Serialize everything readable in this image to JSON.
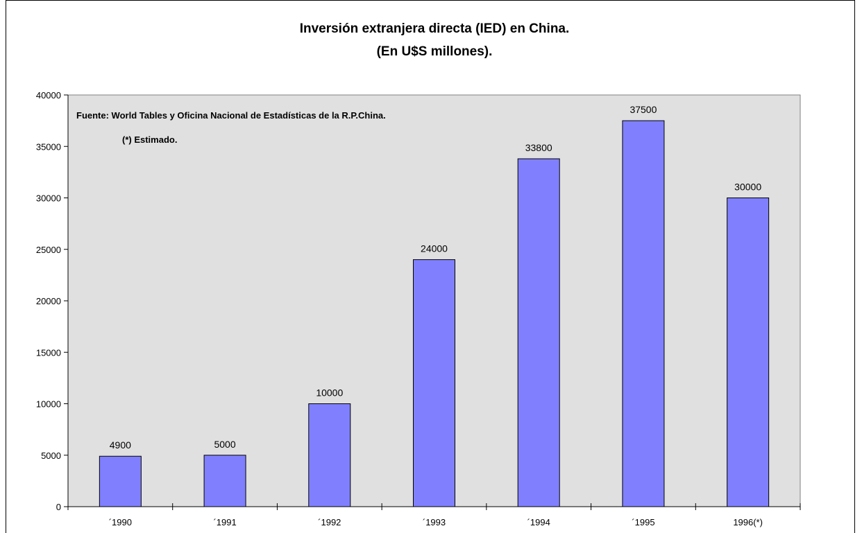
{
  "chart_data": {
    "type": "bar",
    "title": "Inversión extranjera directa (IED) en China.",
    "subtitle": "(En U$S millones).",
    "categories": [
      "´1990",
      "´1991",
      "´1992",
      "´1993",
      "´1994",
      "´1995",
      "1996(*)"
    ],
    "values": [
      4900,
      5000,
      10000,
      24000,
      33800,
      37500,
      30000
    ],
    "data_labels": [
      "4900",
      "5000",
      "10000",
      "24000",
      "33800",
      "37500",
      "30000"
    ],
    "ylim": [
      0,
      40000
    ],
    "y_ticks": [
      "0",
      "5000",
      "10000",
      "15000",
      "20000",
      "25000",
      "30000",
      "35000",
      "40000"
    ],
    "annotations": [
      "Fuente: World Tables y Oficina Nacional de Estadísticas de la R.P.China.",
      "(*) Estimado."
    ],
    "grid": false,
    "colors": {
      "bar_fill": "#8080ff",
      "bar_stroke": "#000000",
      "plot_background": "#e0e0e0"
    }
  }
}
